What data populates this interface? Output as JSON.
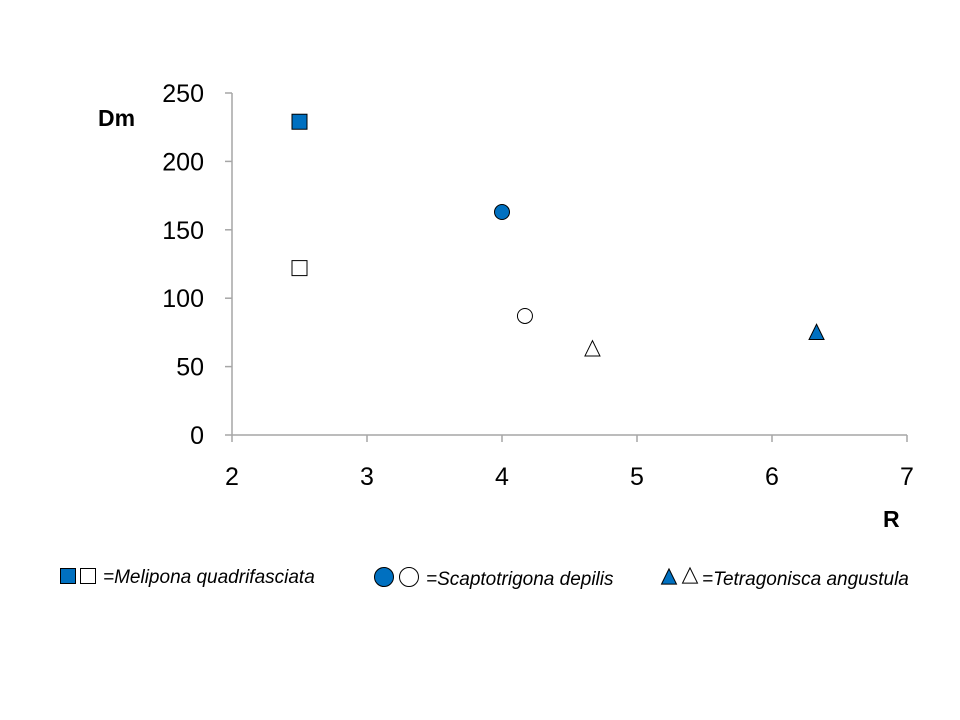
{
  "chart_data": {
    "type": "scatter",
    "xlabel": "R",
    "ylabel": "Dm",
    "xlim": [
      2,
      7
    ],
    "ylim": [
      0,
      250
    ],
    "x_ticks": [
      "2",
      "3",
      "4",
      "5",
      "6",
      "7"
    ],
    "y_ticks": [
      "0",
      "50",
      "100",
      "150",
      "200",
      "250"
    ],
    "grid": false,
    "legend_position": "bottom",
    "colors": {
      "filled": "#0070C0",
      "stroke": "#000000",
      "open": "#ffffff"
    },
    "series": [
      {
        "species": "Melipona quadrifasciata",
        "marker": "square",
        "style": "filled",
        "x": 2.5,
        "y": 229
      },
      {
        "species": "Melipona quadrifasciata",
        "marker": "square",
        "style": "open",
        "x": 2.5,
        "y": 122
      },
      {
        "species": "Scaptotrigona depilis",
        "marker": "circle",
        "style": "filled",
        "x": 4.0,
        "y": 163
      },
      {
        "species": "Scaptotrigona depilis",
        "marker": "circle",
        "style": "open",
        "x": 4.17,
        "y": 87
      },
      {
        "species": "Tetragonisca angustula",
        "marker": "triangle",
        "style": "filled",
        "x": 6.33,
        "y": 75
      },
      {
        "species": "Tetragonisca angustula",
        "marker": "triangle",
        "style": "open",
        "x": 4.67,
        "y": 63
      }
    ],
    "legend": [
      {
        "marker": "square",
        "text": "=Melipona quadrifasciata"
      },
      {
        "marker": "circle",
        "text": "=Scaptotrigona depilis"
      },
      {
        "marker": "triangle",
        "text": "=Tetragonisca angustula"
      }
    ]
  }
}
